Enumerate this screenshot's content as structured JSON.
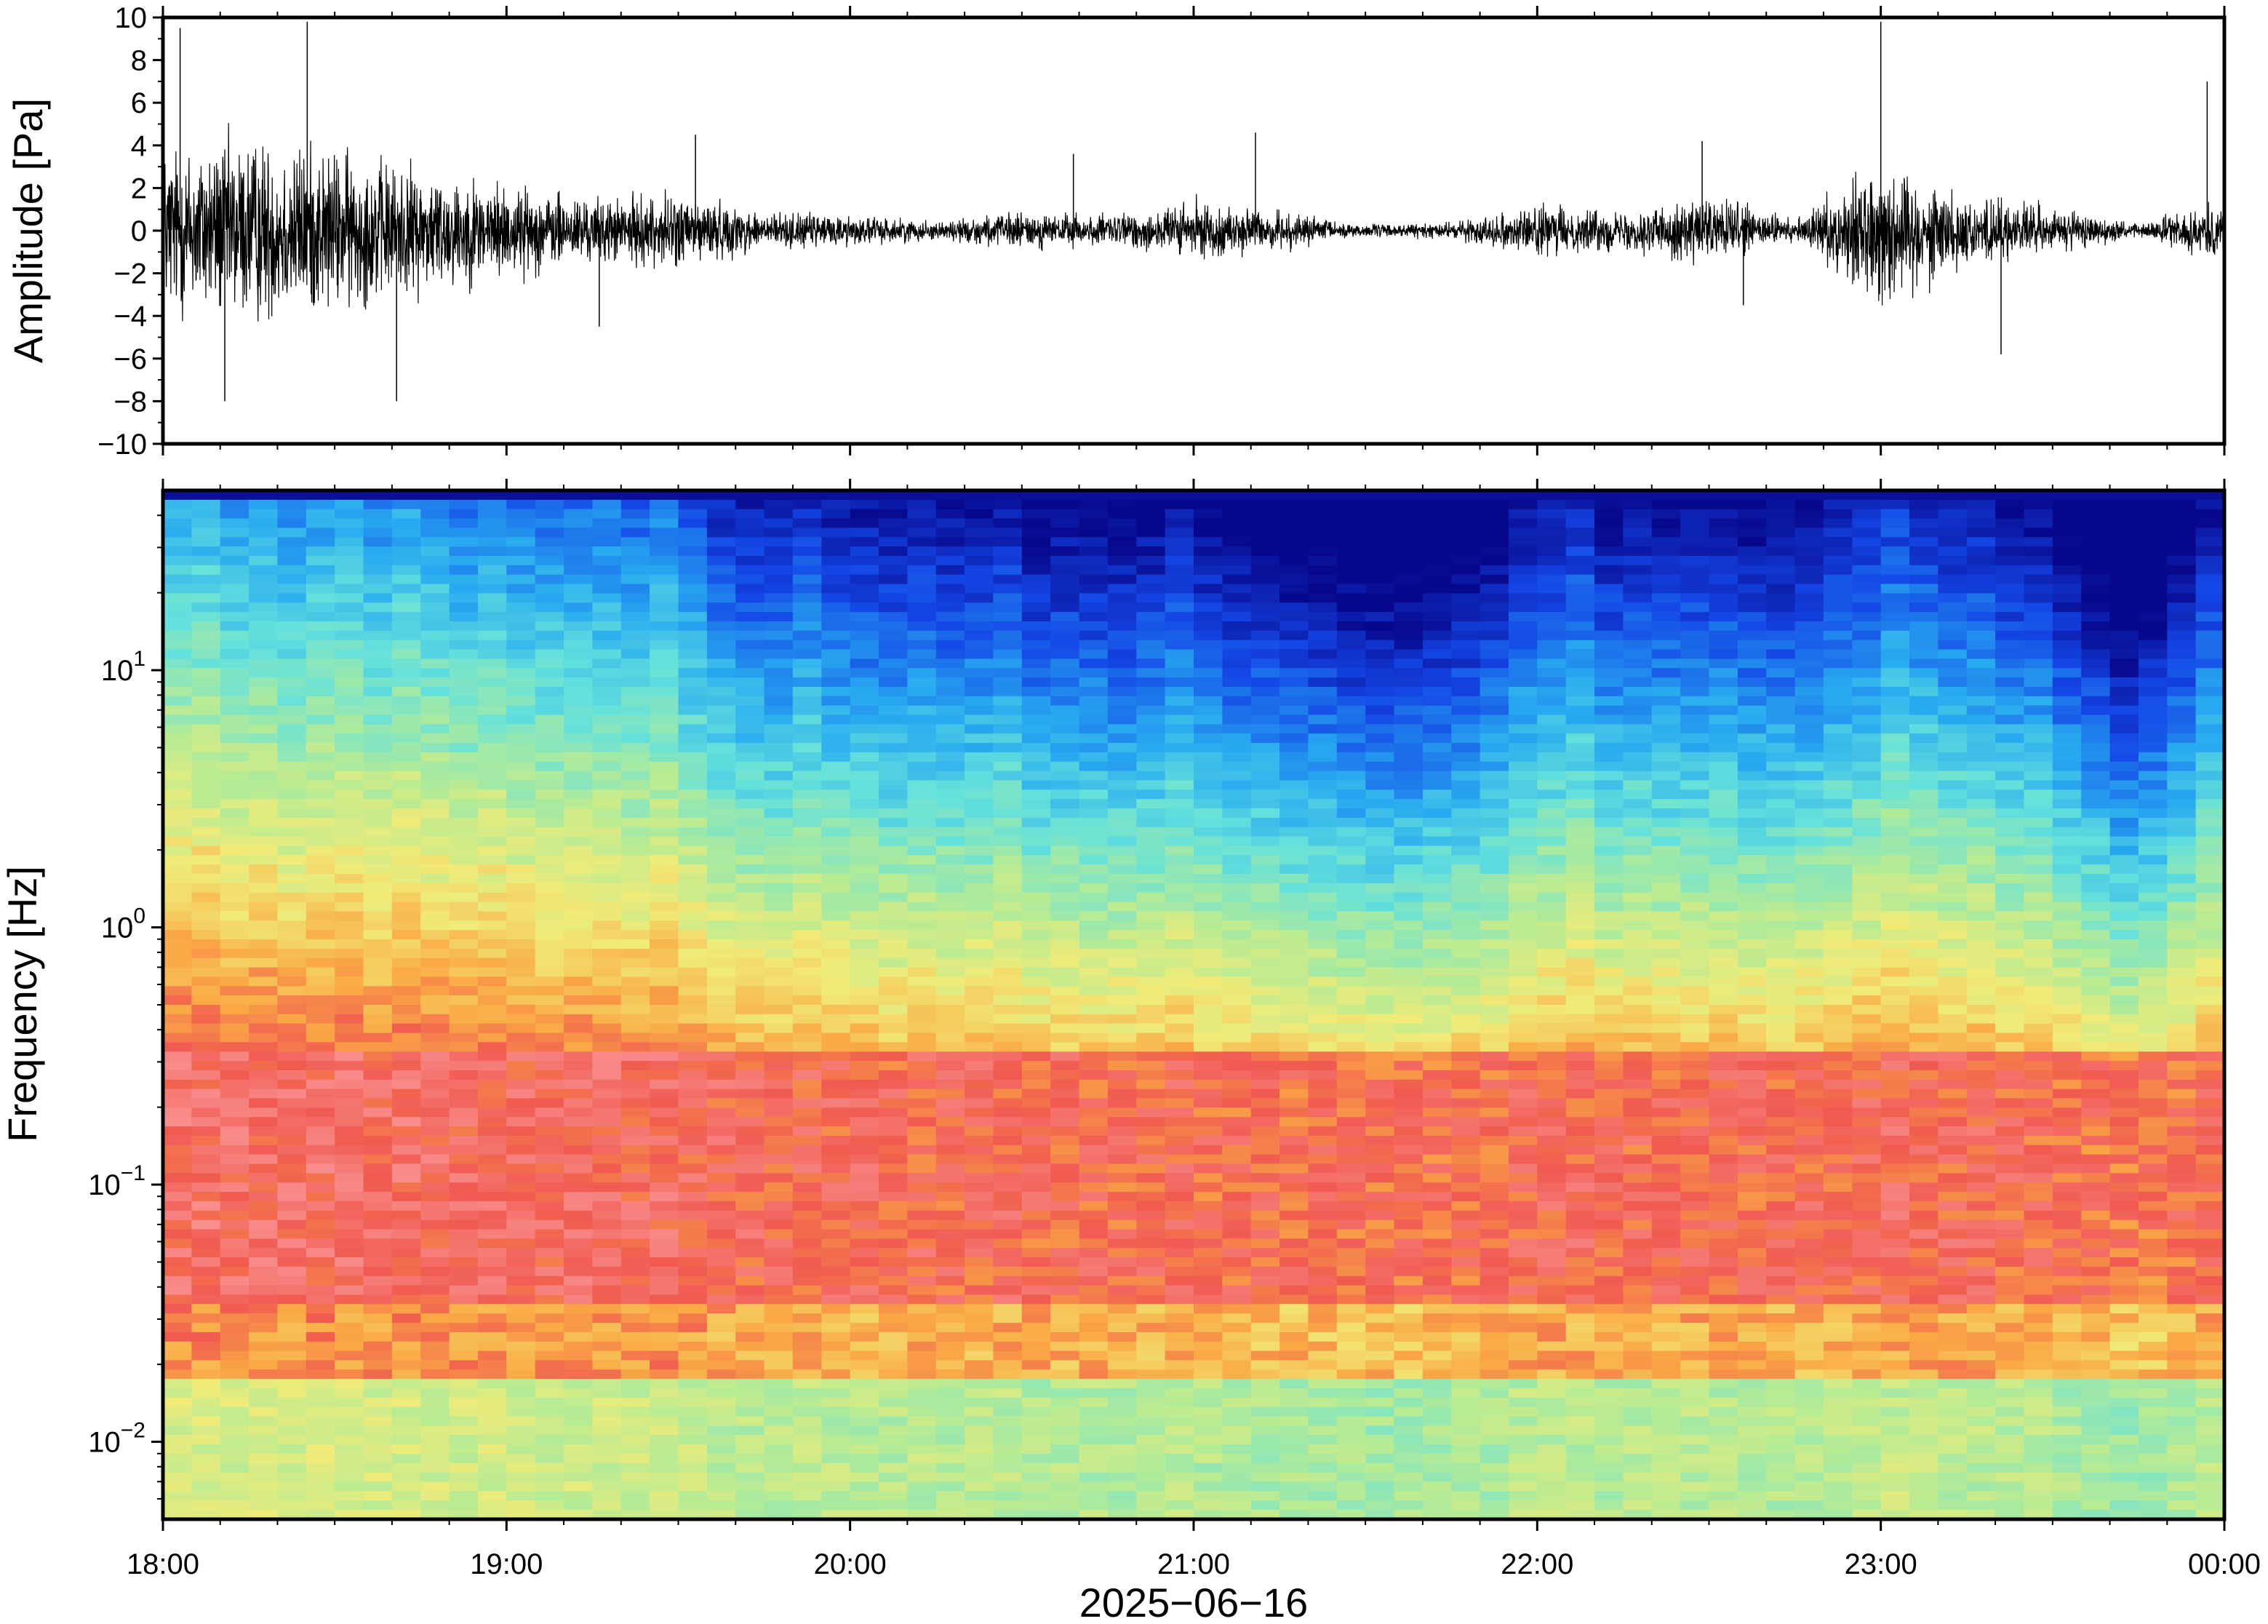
{
  "chart_data": [
    {
      "type": "line",
      "panel": "waveform",
      "ylabel": "Amplitude [Pa]",
      "ylim": [
        -10,
        10
      ],
      "yticks": [
        10,
        8,
        6,
        4,
        2,
        0,
        -2,
        -4,
        -6,
        -8,
        -10
      ],
      "ytick_labels": [
        "10",
        "8",
        "6",
        "4",
        "2",
        "0",
        "−2",
        "−4",
        "−6",
        "−8",
        "−10"
      ],
      "xlim": [
        "18:00",
        "00:00"
      ],
      "envelope_hours": [
        18.0,
        18.25,
        18.5,
        18.75,
        19.0,
        19.25,
        19.5,
        19.75,
        20.0,
        20.25,
        20.5,
        20.75,
        21.0,
        21.25,
        21.5,
        21.75,
        22.0,
        22.25,
        22.5,
        22.75,
        23.0,
        23.25,
        23.5,
        23.75,
        24.0
      ],
      "envelope_pa": [
        5.5,
        6.0,
        5.2,
        4.0,
        3.0,
        2.0,
        2.4,
        1.2,
        1.0,
        0.6,
        1.2,
        1.0,
        1.8,
        1.2,
        0.4,
        0.5,
        1.6,
        1.2,
        2.2,
        0.7,
        4.5,
        2.2,
        1.5,
        0.4,
        2.0
      ],
      "spike_hours": [
        18.05,
        18.18,
        18.42,
        18.68,
        19.27,
        19.55,
        20.65,
        21.18,
        22.48,
        22.6,
        23.0,
        23.35,
        23.95
      ],
      "spike_pa": [
        9.5,
        -8.0,
        9.8,
        -8.0,
        -4.5,
        4.5,
        3.6,
        4.6,
        4.2,
        -3.5,
        9.8,
        -5.8,
        7.0
      ]
    },
    {
      "type": "heatmap",
      "panel": "spectrogram",
      "ylabel": "Frequency [Hz]",
      "y_scale": "log",
      "ylim": [
        0.005,
        50
      ],
      "yticks": [
        0.01,
        0.1,
        1,
        10
      ],
      "ytick_labels": [
        {
          "base": "10",
          "exp": "−2"
        },
        {
          "base": "10",
          "exp": "−1"
        },
        {
          "base": "10",
          "exp": "0"
        },
        {
          "base": "10",
          "exp": "1"
        }
      ],
      "colormap": "jet",
      "xlabel": "2025−06−16",
      "xticks": [
        "18:00",
        "19:00",
        "20:00",
        "21:00",
        "22:00",
        "23:00",
        "00:00"
      ],
      "column_hours": [
        18.0,
        18.25,
        18.5,
        18.75,
        19.0,
        19.25,
        19.5,
        19.75,
        20.0,
        20.25,
        20.5,
        20.75,
        21.0,
        21.25,
        21.5,
        21.75,
        22.0,
        22.25,
        22.5,
        22.75,
        23.0,
        23.25,
        23.5,
        23.75,
        24.0
      ],
      "column_activity": [
        0.95,
        0.95,
        0.9,
        0.88,
        0.82,
        0.78,
        0.75,
        0.55,
        0.55,
        0.5,
        0.48,
        0.35,
        0.45,
        0.35,
        0.15,
        0.25,
        0.55,
        0.5,
        0.45,
        0.35,
        0.6,
        0.55,
        0.4,
        0.1,
        0.5
      ]
    }
  ]
}
